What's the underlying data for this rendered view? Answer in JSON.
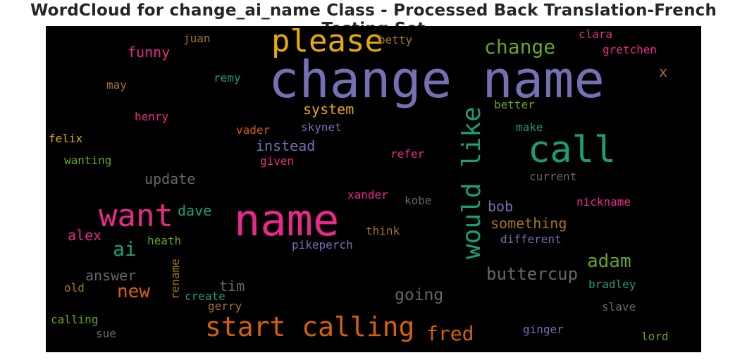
{
  "title": "WordCloud for change_ai_name Class - Processed Back Translation-French Testing Set",
  "background": "#000000",
  "palette": {
    "purple": "#7570b3",
    "green": "#1b9e77",
    "orange": "#d95f02",
    "pink": "#e7298a",
    "olive": "#66a61e",
    "gold": "#e6ab02",
    "brown": "#a6761d",
    "gray": "#666666"
  },
  "words": [
    {
      "text": "change name",
      "color": "purple"
    },
    {
      "text": "name",
      "color": "pink"
    },
    {
      "text": "please",
      "color": "gold"
    },
    {
      "text": "call",
      "color": "green"
    },
    {
      "text": "want",
      "color": "pink"
    },
    {
      "text": "would like",
      "color": "green",
      "orientation": "vertical"
    },
    {
      "text": "start calling",
      "color": "orange"
    },
    {
      "text": "change",
      "color": "olive"
    },
    {
      "text": "fred",
      "color": "orange"
    },
    {
      "text": "ai",
      "color": "green"
    },
    {
      "text": "adam",
      "color": "olive"
    },
    {
      "text": "new",
      "color": "orange"
    },
    {
      "text": "buttercup",
      "color": "gray"
    },
    {
      "text": "going",
      "color": "gray"
    },
    {
      "text": "funny",
      "color": "pink"
    },
    {
      "text": "system",
      "color": "gold"
    },
    {
      "text": "instead",
      "color": "purple"
    },
    {
      "text": "something",
      "color": "brown"
    },
    {
      "text": "update",
      "color": "gray"
    },
    {
      "text": "answer",
      "color": "gray"
    },
    {
      "text": "dave",
      "color": "green"
    },
    {
      "text": "alex",
      "color": "pink"
    },
    {
      "text": "bob",
      "color": "purple"
    },
    {
      "text": "tim",
      "color": "gray"
    },
    {
      "text": "x",
      "color": "brown"
    },
    {
      "text": "clara",
      "color": "pink"
    },
    {
      "text": "gretchen",
      "color": "pink"
    },
    {
      "text": "juan",
      "color": "brown"
    },
    {
      "text": "betty",
      "color": "brown"
    },
    {
      "text": "remy",
      "color": "green"
    },
    {
      "text": "may",
      "color": "brown"
    },
    {
      "text": "better",
      "color": "olive"
    },
    {
      "text": "henry",
      "color": "pink"
    },
    {
      "text": "make",
      "color": "green"
    },
    {
      "text": "felix",
      "color": "gold"
    },
    {
      "text": "vader",
      "color": "orange"
    },
    {
      "text": "skynet",
      "color": "purple"
    },
    {
      "text": "wanting",
      "color": "olive"
    },
    {
      "text": "refer",
      "color": "pink"
    },
    {
      "text": "given",
      "color": "pink"
    },
    {
      "text": "current",
      "color": "gray"
    },
    {
      "text": "xander",
      "color": "pink"
    },
    {
      "text": "kobe",
      "color": "gray"
    },
    {
      "text": "nickname",
      "color": "pink"
    },
    {
      "text": "think",
      "color": "brown"
    },
    {
      "text": "heath",
      "color": "olive"
    },
    {
      "text": "pikeperch",
      "color": "purple"
    },
    {
      "text": "different",
      "color": "purple"
    },
    {
      "text": "rename",
      "color": "brown",
      "orientation": "vertical"
    },
    {
      "text": "old",
      "color": "brown"
    },
    {
      "text": "create",
      "color": "green"
    },
    {
      "text": "bradley",
      "color": "green"
    },
    {
      "text": "gerry",
      "color": "brown"
    },
    {
      "text": "slave",
      "color": "gray"
    },
    {
      "text": "calling",
      "color": "olive"
    },
    {
      "text": "sue",
      "color": "gray"
    },
    {
      "text": "ginger",
      "color": "purple"
    },
    {
      "text": "lord",
      "color": "olive"
    }
  ]
}
